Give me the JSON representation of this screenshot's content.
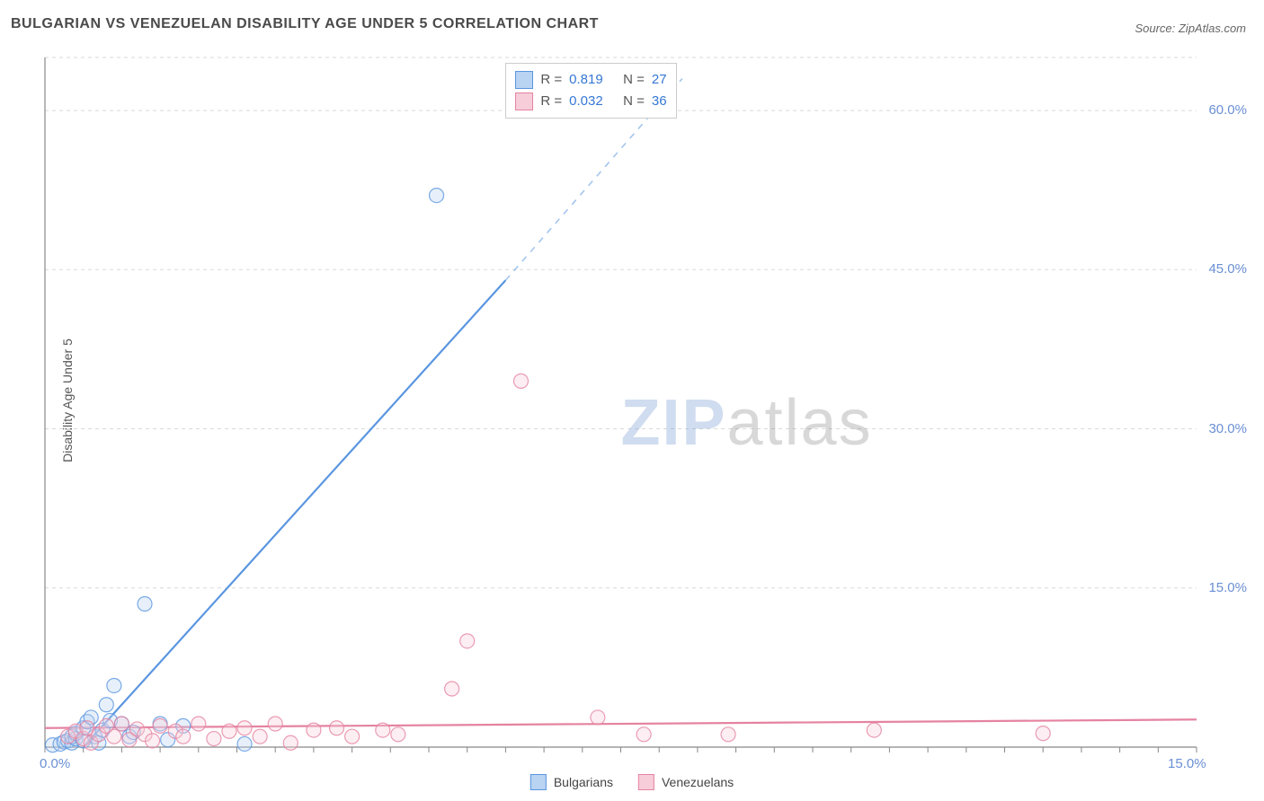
{
  "title": "BULGARIAN VS VENEZUELAN DISABILITY AGE UNDER 5 CORRELATION CHART",
  "source_label": "Source: ZipAtlas.com",
  "y_axis_label": "Disability Age Under 5",
  "watermark": {
    "part1": "ZIP",
    "part2": "atlas"
  },
  "chart": {
    "type": "scatter-with-regression",
    "background": "#ffffff",
    "grid_color": "#d9d9d9",
    "axis_line_color": "#888888",
    "xlim": [
      0,
      15
    ],
    "ylim": [
      0,
      65
    ],
    "x_ticks": [
      0,
      15
    ],
    "x_tick_labels": [
      "0.0%",
      "15.0%"
    ],
    "y_ticks": [
      15,
      30,
      45,
      60
    ],
    "y_tick_labels": [
      "15.0%",
      "30.0%",
      "45.0%",
      "60.0%"
    ],
    "x_minor_tick_step": 0.5,
    "marker_radius": 8,
    "marker_fill_opacity": 0.35,
    "marker_stroke_width": 1.2,
    "reg_line_width": 2.2,
    "series": [
      {
        "key": "bulgarians",
        "label": "Bulgarians",
        "color": "#5a96e0",
        "fill": "#b9d3f2",
        "R": "0.819",
        "N": "27",
        "reg_line": {
          "x1": 0.5,
          "y1": 0,
          "x2": 6.0,
          "y2": 44.0,
          "dash_x2": 8.3,
          "dash_y2": 63.0
        },
        "points": [
          [
            0.1,
            0.2
          ],
          [
            0.2,
            0.3
          ],
          [
            0.25,
            0.5
          ],
          [
            0.3,
            0.6
          ],
          [
            0.35,
            0.4
          ],
          [
            0.35,
            1.0
          ],
          [
            0.4,
            0.8
          ],
          [
            0.4,
            1.3
          ],
          [
            0.5,
            0.6
          ],
          [
            0.5,
            1.8
          ],
          [
            0.55,
            2.4
          ],
          [
            0.6,
            2.8
          ],
          [
            0.65,
            1.0
          ],
          [
            0.7,
            0.4
          ],
          [
            0.75,
            1.6
          ],
          [
            0.8,
            4.0
          ],
          [
            0.85,
            2.5
          ],
          [
            0.9,
            5.8
          ],
          [
            1.0,
            2.2
          ],
          [
            1.1,
            1.0
          ],
          [
            1.15,
            1.4
          ],
          [
            1.3,
            13.5
          ],
          [
            1.5,
            2.2
          ],
          [
            1.6,
            0.7
          ],
          [
            1.8,
            2.0
          ],
          [
            2.6,
            0.3
          ],
          [
            5.1,
            52.0
          ]
        ]
      },
      {
        "key": "venezuelans",
        "label": "Venezuelans",
        "color": "#e583a1",
        "fill": "#f6cdd9",
        "R": "0.032",
        "N": "36",
        "reg_line": {
          "x1": 0,
          "y1": 1.8,
          "x2": 15,
          "y2": 2.6
        },
        "points": [
          [
            0.3,
            1.0
          ],
          [
            0.4,
            1.5
          ],
          [
            0.5,
            0.8
          ],
          [
            0.55,
            1.8
          ],
          [
            0.6,
            0.4
          ],
          [
            0.7,
            1.2
          ],
          [
            0.8,
            2.0
          ],
          [
            0.9,
            1.0
          ],
          [
            1.0,
            2.2
          ],
          [
            1.1,
            0.7
          ],
          [
            1.2,
            1.7
          ],
          [
            1.3,
            1.2
          ],
          [
            1.4,
            0.6
          ],
          [
            1.5,
            2.0
          ],
          [
            1.7,
            1.5
          ],
          [
            1.8,
            1.0
          ],
          [
            2.0,
            2.2
          ],
          [
            2.2,
            0.8
          ],
          [
            2.4,
            1.5
          ],
          [
            2.6,
            1.8
          ],
          [
            2.8,
            1.0
          ],
          [
            3.0,
            2.2
          ],
          [
            3.2,
            0.4
          ],
          [
            3.5,
            1.6
          ],
          [
            3.8,
            1.8
          ],
          [
            4.0,
            1.0
          ],
          [
            4.4,
            1.6
          ],
          [
            4.6,
            1.2
          ],
          [
            5.3,
            5.5
          ],
          [
            5.5,
            10.0
          ],
          [
            6.2,
            34.5
          ],
          [
            7.2,
            2.8
          ],
          [
            7.8,
            1.2
          ],
          [
            8.9,
            1.2
          ],
          [
            10.8,
            1.6
          ],
          [
            13.0,
            1.3
          ]
        ]
      }
    ]
  },
  "legend_box": {
    "rows": [
      {
        "swatch_fill": "#b9d3f2",
        "swatch_border": "#5a96e0",
        "r_label": "R =",
        "r_val": "0.819",
        "n_label": "N =",
        "n_val": "27"
      },
      {
        "swatch_fill": "#f6cdd9",
        "swatch_border": "#e583a1",
        "r_label": "R =",
        "r_val": "0.032",
        "n_label": "N =",
        "n_val": "36"
      }
    ]
  },
  "bottom_legend": [
    {
      "label": "Bulgarians",
      "fill": "#b9d3f2",
      "border": "#5a96e0"
    },
    {
      "label": "Venezuelans",
      "fill": "#f6cdd9",
      "border": "#e583a1"
    }
  ]
}
